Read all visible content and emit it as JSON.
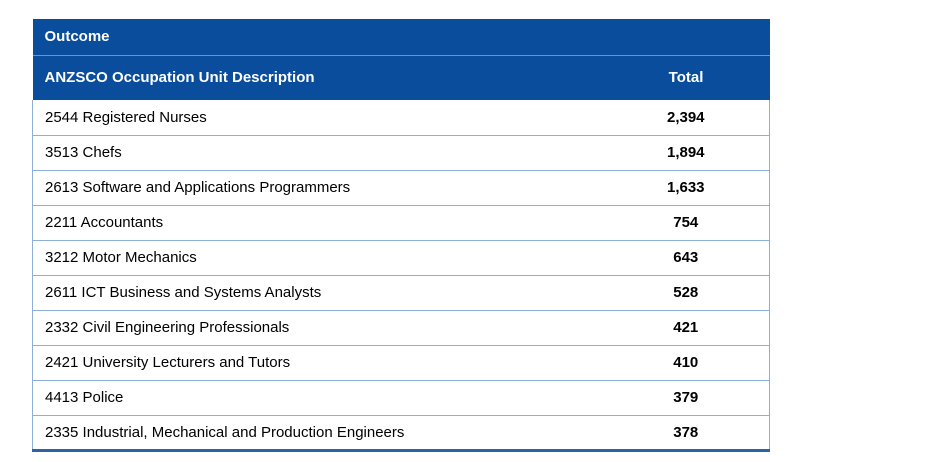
{
  "table": {
    "title": "Outcome",
    "columns": {
      "description": "ANZSCO Occupation Unit Description",
      "total": "Total"
    },
    "rows": [
      {
        "description": "2544 Registered Nurses",
        "total": "2,394"
      },
      {
        "description": "3513 Chefs",
        "total": "1,894"
      },
      {
        "description": "2613 Software and Applications Programmers",
        "total": "1,633"
      },
      {
        "description": "2211 Accountants",
        "total": "754"
      },
      {
        "description": "3212 Motor Mechanics",
        "total": "643"
      },
      {
        "description": "2611 ICT Business and Systems Analysts",
        "total": "528"
      },
      {
        "description": "2332 Civil Engineering Professionals",
        "total": "421"
      },
      {
        "description": "2421 University Lecturers and Tutors",
        "total": "410"
      },
      {
        "description": "4413 Police",
        "total": "379"
      },
      {
        "description": "2335 Industrial, Mechanical and Production Engineers",
        "total": "378"
      }
    ]
  },
  "colors": {
    "header_background": "#0a4d9d",
    "border": "#8fb0d6"
  }
}
